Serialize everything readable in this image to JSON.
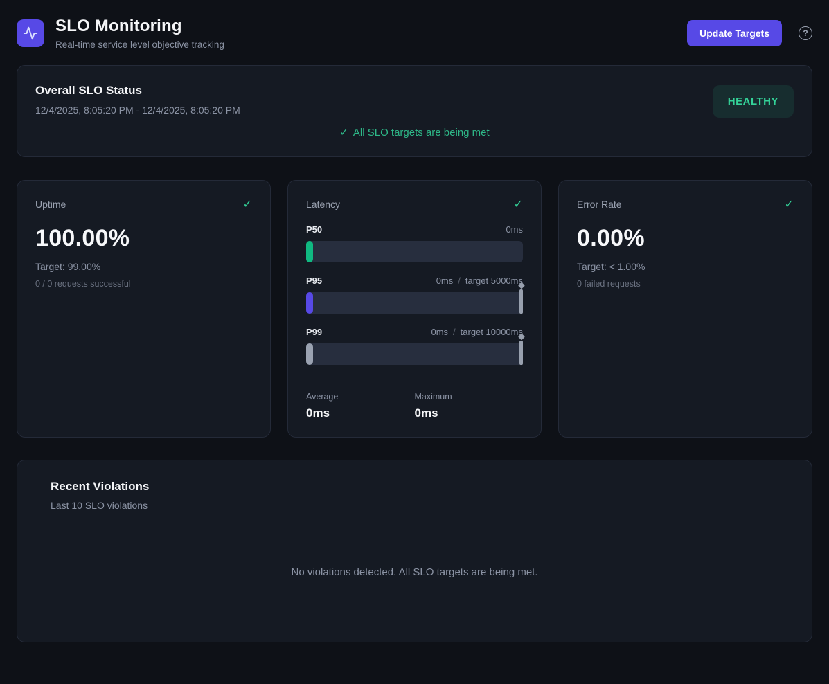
{
  "header": {
    "title": "SLO Monitoring",
    "subtitle": "Real-time service level objective tracking",
    "update_button": "Update Targets"
  },
  "glyphs": {
    "check": "✓",
    "help": "?"
  },
  "status_card": {
    "title": "Overall SLO Status",
    "date_range": "12/4/2025, 8:05:20 PM - 12/4/2025, 8:05:20 PM",
    "badge": "HEALTHY",
    "message": "All SLO targets are being met"
  },
  "metrics": {
    "uptime": {
      "title": "Uptime",
      "value": "100.00%",
      "target": "Target: 99.00%",
      "detail": "0 / 0 requests successful"
    },
    "latency": {
      "title": "Latency",
      "percentiles": [
        {
          "label": "P50",
          "value": "0ms",
          "fill_color": "#10b981",
          "fill_percent": 2
        },
        {
          "label": "P95",
          "value": "0ms",
          "separator": "/",
          "target_label": "target 5000ms",
          "fill_color": "#5749e6",
          "fill_percent": 2
        },
        {
          "label": "P99",
          "value": "0ms",
          "separator": "/",
          "target_label": "target 10000ms",
          "fill_color": "#9aa2b1",
          "fill_percent": 2
        }
      ],
      "average_label": "Average",
      "average_value": "0ms",
      "maximum_label": "Maximum",
      "maximum_value": "0ms"
    },
    "error_rate": {
      "title": "Error Rate",
      "value": "0.00%",
      "target": "Target: < 1.00%",
      "detail": "0 failed requests"
    }
  },
  "violations": {
    "title": "Recent Violations",
    "subtitle": "Last 10 SLO violations",
    "empty_message": "No violations detected. All SLO targets are being met."
  },
  "colors": {
    "accent": "#5749e6",
    "success": "#34d399",
    "success-dim": "#2eb888",
    "page-bg": "#0e1117",
    "card-bg": "#151a23",
    "card-border": "#242a38",
    "bar-track": "#272e3e",
    "marker": "#98a0ae"
  }
}
